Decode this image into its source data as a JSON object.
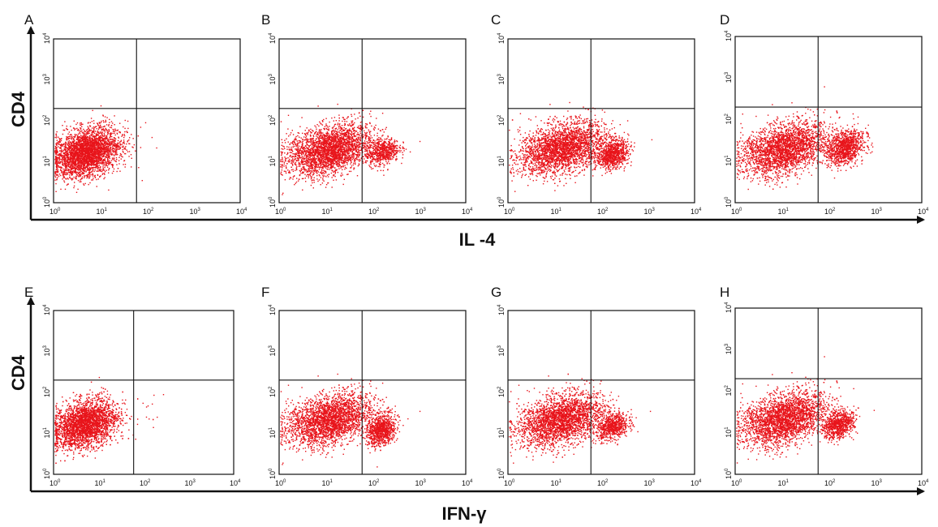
{
  "figure": {
    "row_labels_y": [
      "CD4",
      "CD4"
    ],
    "row_labels_x": [
      "IL -4",
      "IFN-γ"
    ],
    "tick_base": "10",
    "tick_exponents": [
      "0",
      "1",
      "2",
      "3",
      "4"
    ]
  },
  "colors": {
    "dots": "#e8141b",
    "frame": "#111111",
    "background": "#ffffff"
  },
  "chart_data": [
    {
      "type": "scatter",
      "panel": "A",
      "x_axis_scale": "log",
      "y_axis_scale": "log",
      "xlim": [
        1,
        10000
      ],
      "ylim": [
        1,
        10000
      ],
      "quadrant_gate": {
        "x": 60,
        "y": 200
      },
      "clusters": [
        {
          "center": [
            5,
            17
          ],
          "spread_decades": [
            0.35,
            0.28
          ],
          "approx_events": 3400
        },
        {
          "center": [
            110,
            35
          ],
          "spread_decades": [
            0.3,
            0.4
          ],
          "approx_events": 10
        }
      ]
    },
    {
      "type": "scatter",
      "panel": "B",
      "x_axis_scale": "log",
      "y_axis_scale": "log",
      "xlim": [
        1,
        10000
      ],
      "ylim": [
        1,
        10000
      ],
      "quadrant_gate": {
        "x": 60,
        "y": 200
      },
      "clusters": [
        {
          "center": [
            12,
            20
          ],
          "spread_decades": [
            0.45,
            0.3
          ],
          "approx_events": 3000
        },
        {
          "center": [
            160,
            18
          ],
          "spread_decades": [
            0.18,
            0.15
          ],
          "approx_events": 600
        }
      ]
    },
    {
      "type": "scatter",
      "panel": "C",
      "x_axis_scale": "log",
      "y_axis_scale": "log",
      "xlim": [
        1,
        10000
      ],
      "ylim": [
        1,
        10000
      ],
      "quadrant_gate": {
        "x": 60,
        "y": 200
      },
      "clusters": [
        {
          "center": [
            14,
            22
          ],
          "spread_decades": [
            0.45,
            0.3
          ],
          "approx_events": 3000
        },
        {
          "center": [
            170,
            16
          ],
          "spread_decades": [
            0.17,
            0.17
          ],
          "approx_events": 900
        }
      ]
    },
    {
      "type": "scatter",
      "panel": "D",
      "x_axis_scale": "log",
      "y_axis_scale": "log",
      "xlim": [
        1,
        10000
      ],
      "ylim": [
        1,
        10000
      ],
      "quadrant_gate": {
        "x": 60,
        "y": 200
      },
      "clusters": [
        {
          "center": [
            11,
            20
          ],
          "spread_decades": [
            0.45,
            0.3
          ],
          "approx_events": 2800
        },
        {
          "center": [
            220,
            22
          ],
          "spread_decades": [
            0.2,
            0.2
          ],
          "approx_events": 1100
        }
      ]
    },
    {
      "type": "scatter",
      "panel": "E",
      "x_axis_scale": "log",
      "y_axis_scale": "log",
      "xlim": [
        1,
        10000
      ],
      "ylim": [
        1,
        10000
      ],
      "quadrant_gate": {
        "x": 60,
        "y": 200
      },
      "clusters": [
        {
          "center": [
            5,
            17
          ],
          "spread_decades": [
            0.35,
            0.28
          ],
          "approx_events": 3400
        },
        {
          "center": [
            110,
            40
          ],
          "spread_decades": [
            0.3,
            0.4
          ],
          "approx_events": 12
        }
      ]
    },
    {
      "type": "scatter",
      "panel": "F",
      "x_axis_scale": "log",
      "y_axis_scale": "log",
      "xlim": [
        1,
        10000
      ],
      "ylim": [
        1,
        10000
      ],
      "quadrant_gate": {
        "x": 60,
        "y": 200
      },
      "clusters": [
        {
          "center": [
            12,
            22
          ],
          "spread_decades": [
            0.45,
            0.3
          ],
          "approx_events": 3000
        },
        {
          "center": [
            150,
            12
          ],
          "spread_decades": [
            0.15,
            0.18
          ],
          "approx_events": 900
        }
      ]
    },
    {
      "type": "scatter",
      "panel": "G",
      "x_axis_scale": "log",
      "y_axis_scale": "log",
      "xlim": [
        1,
        10000
      ],
      "ylim": [
        1,
        10000
      ],
      "quadrant_gate": {
        "x": 60,
        "y": 200
      },
      "clusters": [
        {
          "center": [
            13,
            22
          ],
          "spread_decades": [
            0.45,
            0.3
          ],
          "approx_events": 3000
        },
        {
          "center": [
            170,
            15
          ],
          "spread_decades": [
            0.17,
            0.15
          ],
          "approx_events": 700
        }
      ]
    },
    {
      "type": "scatter",
      "panel": "H",
      "x_axis_scale": "log",
      "y_axis_scale": "log",
      "xlim": [
        1,
        10000
      ],
      "ylim": [
        1,
        10000
      ],
      "quadrant_gate": {
        "x": 60,
        "y": 200
      },
      "clusters": [
        {
          "center": [
            11,
            22
          ],
          "spread_decades": [
            0.45,
            0.3
          ],
          "approx_events": 2800
        },
        {
          "center": [
            160,
            16
          ],
          "spread_decades": [
            0.17,
            0.15
          ],
          "approx_events": 800
        }
      ]
    }
  ]
}
